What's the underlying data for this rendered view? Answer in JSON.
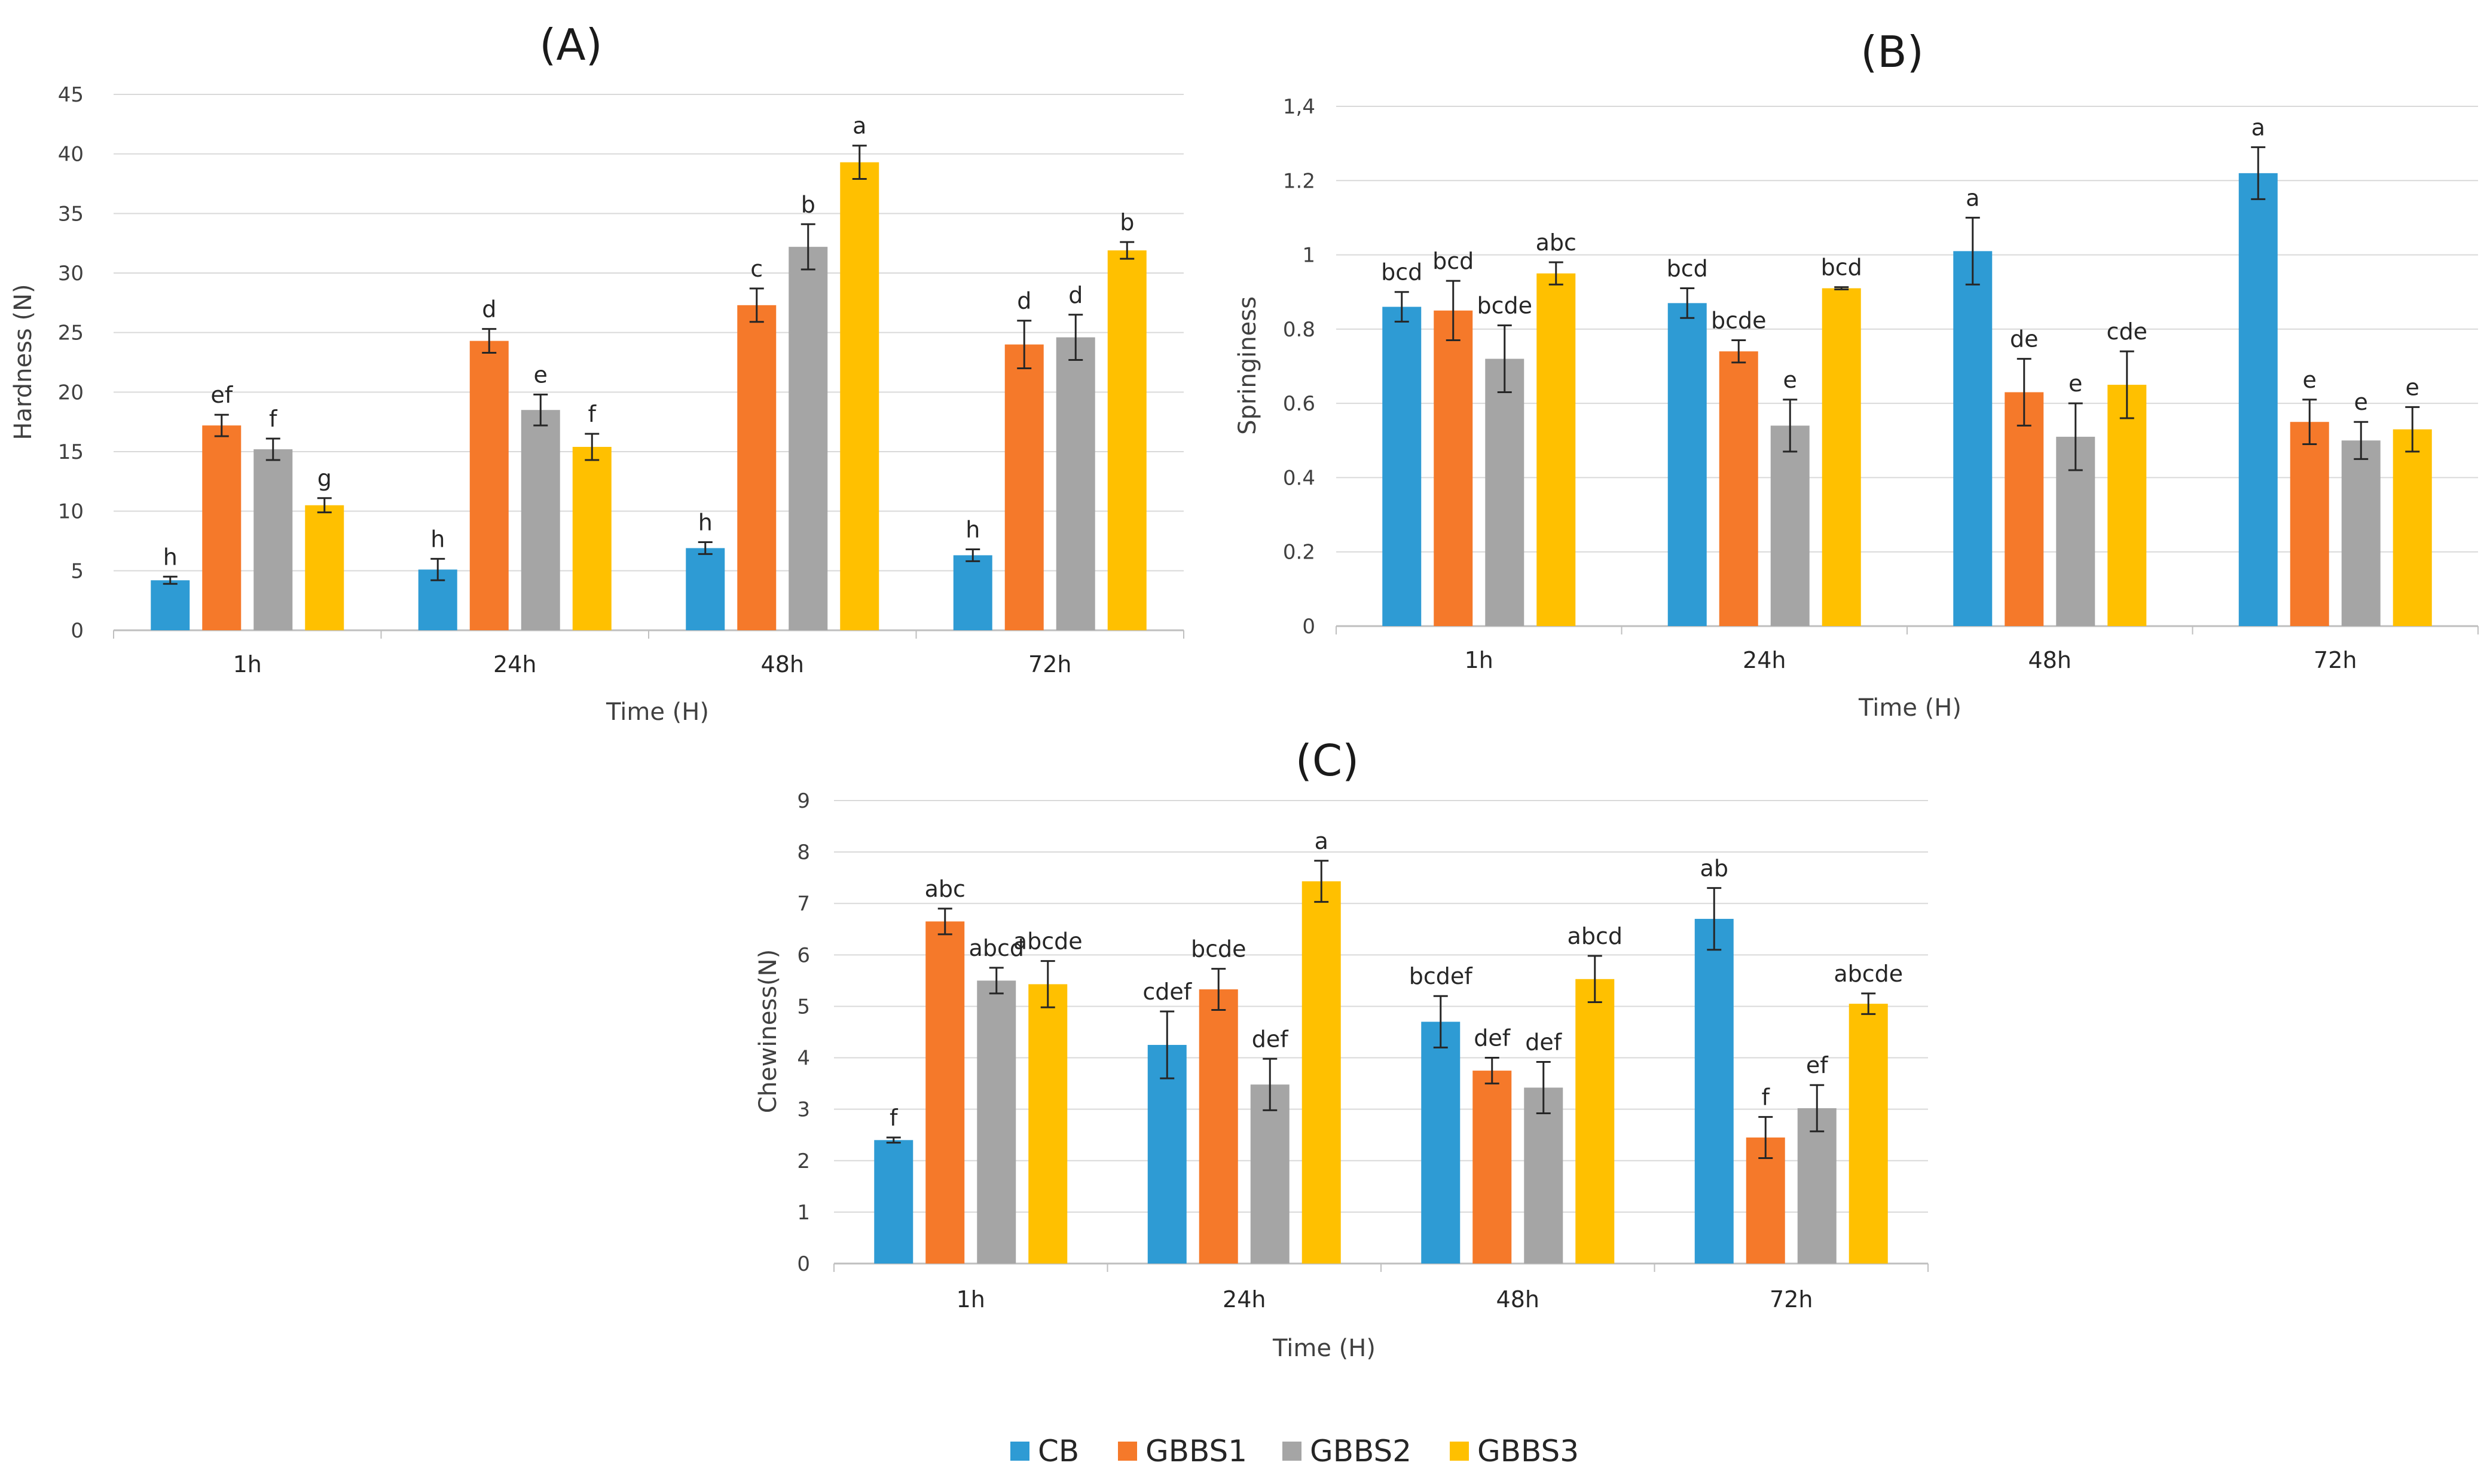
{
  "colors": {
    "CB": "#2E9BD4",
    "GBBS1": "#F5792A",
    "GBBS2": "#A5A5A5",
    "GBBS3": "#FFC000"
  },
  "legend": [
    "CB",
    "GBBS1",
    "GBBS2",
    "GBBS3"
  ],
  "chart_data": [
    {
      "panel": "(A)",
      "type": "bar",
      "title": "(A)",
      "xlabel": "Time (H)",
      "ylabel": "Hardness (N)",
      "ylim": [
        0,
        45
      ],
      "yticks": [
        "0",
        "5",
        "10",
        "15",
        "20",
        "25",
        "30",
        "35",
        "40",
        "45"
      ],
      "ytick_values": [
        0,
        5,
        10,
        15,
        20,
        25,
        30,
        35,
        40,
        45
      ],
      "categories": [
        "1h",
        "24h",
        "48h",
        "72h"
      ],
      "series": [
        {
          "name": "CB",
          "values": [
            4.2,
            5.1,
            6.9,
            6.3
          ],
          "errors": [
            0.3,
            0.9,
            0.5,
            0.5
          ],
          "letters": [
            "h",
            "h",
            "h",
            "h"
          ]
        },
        {
          "name": "GBBS1",
          "values": [
            17.2,
            24.3,
            27.3,
            24.0
          ],
          "errors": [
            0.9,
            1.0,
            1.4,
            2.0
          ],
          "letters": [
            "ef",
            "d",
            "c",
            "d"
          ]
        },
        {
          "name": "GBBS2",
          "values": [
            15.2,
            18.5,
            32.2,
            24.6
          ],
          "errors": [
            0.9,
            1.3,
            1.9,
            1.9
          ],
          "letters": [
            "f",
            "e",
            "b",
            "d"
          ]
        },
        {
          "name": "GBBS3",
          "values": [
            10.5,
            15.4,
            39.3,
            31.9
          ],
          "errors": [
            0.6,
            1.1,
            1.4,
            0.7
          ],
          "letters": [
            "g",
            "f",
            "a",
            "b"
          ]
        }
      ]
    },
    {
      "panel": "(B)",
      "type": "bar",
      "title": "(B)",
      "xlabel": "Time (H)",
      "ylabel": "Springiness",
      "ylim": [
        0,
        1.4
      ],
      "yticks": [
        "0",
        "0.2",
        "0.4",
        "0.6",
        "0.8",
        "1",
        "1.2",
        "1,4"
      ],
      "ytick_values": [
        0,
        0.2,
        0.4,
        0.6,
        0.8,
        1.0,
        1.2,
        1.4
      ],
      "categories": [
        "1h",
        "24h",
        "48h",
        "72h"
      ],
      "series": [
        {
          "name": "CB",
          "values": [
            0.86,
            0.87,
            1.01,
            1.22
          ],
          "errors": [
            0.04,
            0.04,
            0.09,
            0.07
          ],
          "letters": [
            "bcd",
            "bcd",
            "a",
            "a"
          ]
        },
        {
          "name": "GBBS1",
          "values": [
            0.85,
            0.74,
            0.63,
            0.55
          ],
          "errors": [
            0.08,
            0.03,
            0.09,
            0.06
          ],
          "letters": [
            "bcd",
            "bcde",
            "de",
            "e"
          ]
        },
        {
          "name": "GBBS2",
          "values": [
            0.72,
            0.54,
            0.51,
            0.5
          ],
          "errors": [
            0.09,
            0.07,
            0.09,
            0.05
          ],
          "letters": [
            "bcde",
            "e",
            "e",
            "e"
          ]
        },
        {
          "name": "GBBS3",
          "values": [
            0.95,
            0.91,
            0.65,
            0.53
          ],
          "errors": [
            0.03,
            0.003,
            0.09,
            0.06
          ],
          "letters": [
            "abc",
            "bcd",
            "cde",
            "e"
          ]
        }
      ]
    },
    {
      "panel": "(C)",
      "type": "bar",
      "title": "(C)",
      "xlabel": "Time (H)",
      "ylabel": "Chewiness(N)",
      "ylim": [
        0,
        9
      ],
      "yticks": [
        "0",
        "1",
        "2",
        "3",
        "4",
        "5",
        "6",
        "7",
        "8",
        "9"
      ],
      "ytick_values": [
        0,
        1,
        2,
        3,
        4,
        5,
        6,
        7,
        8,
        9
      ],
      "categories": [
        "1h",
        "24h",
        "48h",
        "72h"
      ],
      "series": [
        {
          "name": "CB",
          "values": [
            2.4,
            4.25,
            4.7,
            6.7
          ],
          "errors": [
            0.05,
            0.65,
            0.5,
            0.6
          ],
          "letters": [
            "f",
            "cdef",
            "bcdef",
            "ab"
          ]
        },
        {
          "name": "GBBS1",
          "values": [
            6.65,
            5.33,
            3.75,
            2.45
          ],
          "errors": [
            0.25,
            0.4,
            0.25,
            0.4
          ],
          "letters": [
            "abc",
            "bcde",
            "def",
            "f"
          ]
        },
        {
          "name": "GBBS2",
          "values": [
            5.5,
            3.48,
            3.42,
            3.02
          ],
          "errors": [
            0.25,
            0.5,
            0.5,
            0.45
          ],
          "letters": [
            "abcd",
            "def",
            "def",
            "ef"
          ]
        },
        {
          "name": "GBBS3",
          "values": [
            5.43,
            7.43,
            5.53,
            5.05
          ],
          "errors": [
            0.45,
            0.4,
            0.45,
            0.2
          ],
          "letters": [
            "abcde",
            "a",
            "abcd",
            "abcde"
          ]
        }
      ]
    }
  ]
}
